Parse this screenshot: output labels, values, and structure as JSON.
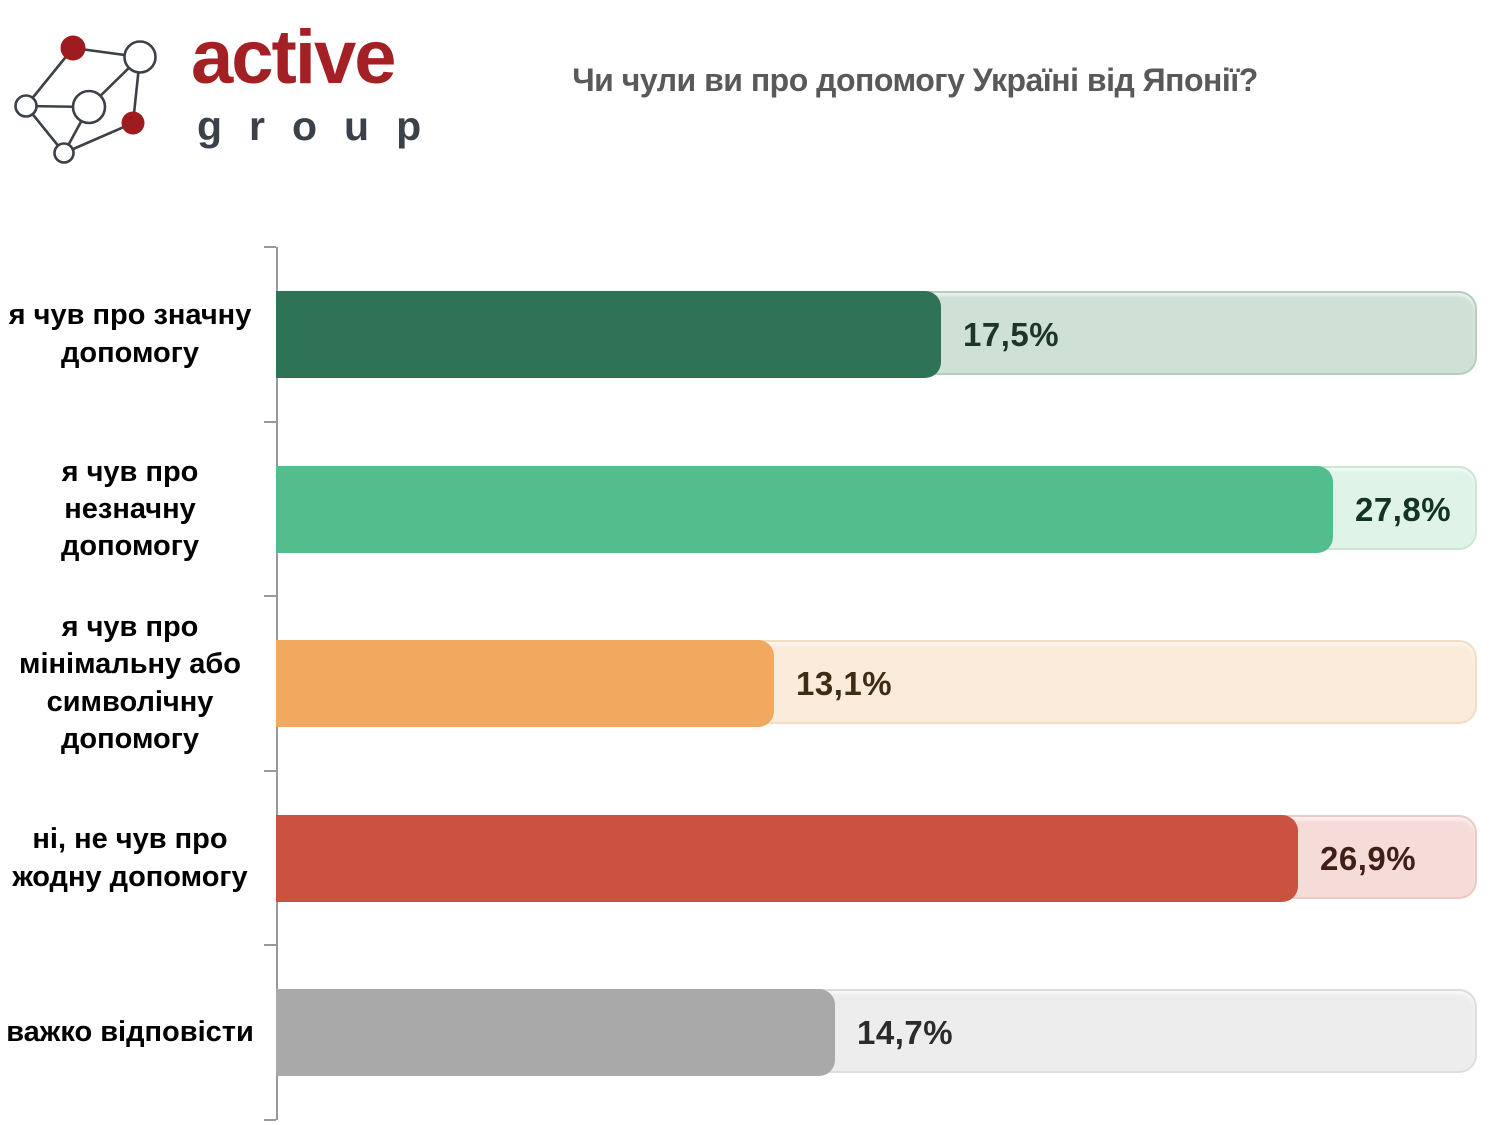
{
  "logo": {
    "brand": "active",
    "sub": "group",
    "brand_color": "#A32125",
    "sub_color": "#3B4148",
    "line_color": "#3C4147",
    "red_node_color": "#9E1B1F"
  },
  "header": {
    "title": "Чи чули ви про допомогу Україні від Японії?",
    "title_color": "#595959"
  },
  "chart_data": {
    "type": "bar",
    "orientation": "horizontal",
    "title": "Чи чули ви про допомогу Україні від Японії?",
    "categories": [
      "я чув про значну\nдопомогу",
      "я чув про незначну\nдопомогу",
      "я чув про\nмінімальну або\nсимволічну\nдопомогу",
      "ні, не чув про\nжодну допомогу",
      "важко відповісти"
    ],
    "values": [
      17.5,
      27.8,
      13.1,
      26.9,
      14.7
    ],
    "value_labels": [
      "17,5%",
      "27,8%",
      "13,1%",
      "26,9%",
      "14,7%"
    ],
    "bar_colors": [
      "#2E7355",
      "#53BD8D",
      "#F1A85F",
      "#CB5240",
      "#A9A9A9"
    ],
    "track_colors": [
      "#CFE0D6",
      "#DFF3E8",
      "#FBEBDB",
      "#F6DCD8",
      "#EDEDED"
    ],
    "track_border_colors": [
      "#B7CDBF",
      "#C9E6D6",
      "#F4DCC3",
      "#EEC9C3",
      "#DDDDDD"
    ],
    "value_label_colors": [
      "#1D352A",
      "#123325",
      "#3E2C15",
      "#411F18",
      "#2B2B2B"
    ],
    "xlim": [
      0,
      31.6
    ],
    "grid": false,
    "legend": false,
    "axis_color": "#999999"
  }
}
